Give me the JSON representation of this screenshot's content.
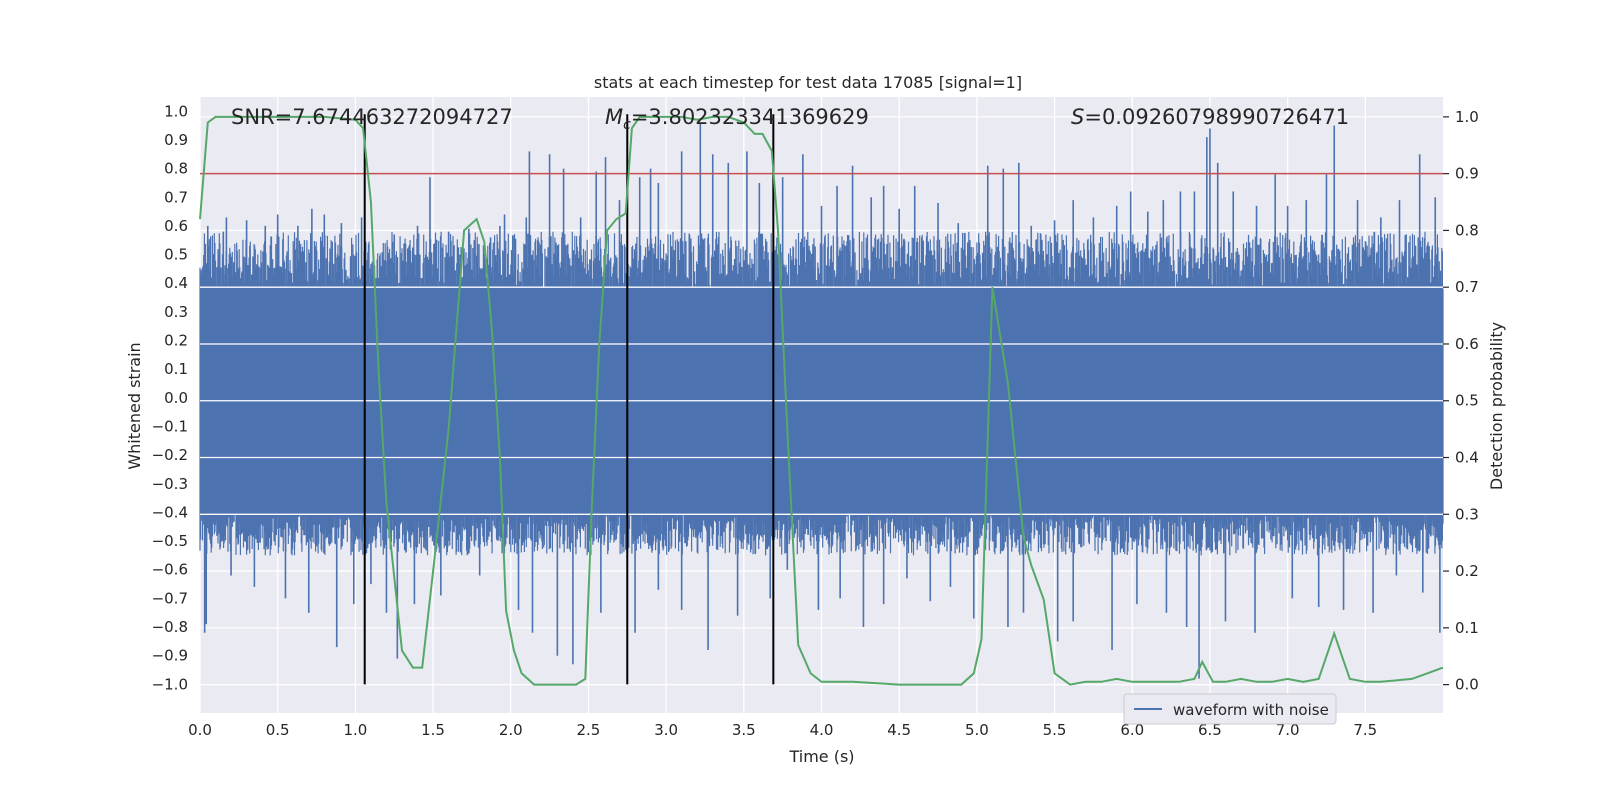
{
  "chart_data": {
    "type": "line",
    "title": "stats at each timestep for test data 17085 [signal=1]",
    "xlabel": "Time (s)",
    "ylabel": "Whitened strain",
    "y2label": "Detection probability",
    "xlim": [
      0,
      8
    ],
    "ylim": [
      -1.1,
      1.05
    ],
    "y2lim": [
      -0.05,
      1.035
    ],
    "x_ticks": [
      "0.0",
      "0.5",
      "1.0",
      "1.5",
      "2.0",
      "2.5",
      "3.0",
      "3.5",
      "4.0",
      "4.5",
      "5.0",
      "5.5",
      "6.0",
      "6.5",
      "7.0",
      "7.5"
    ],
    "y_ticks": [
      "1.0",
      "0.9",
      "0.8",
      "0.7",
      "0.6",
      "0.5",
      "0.4",
      "0.3",
      "0.2",
      "0.1",
      "0.0",
      "-0.1",
      "-0.2",
      "-0.3",
      "-0.4",
      "-0.5",
      "-0.6",
      "-0.7",
      "-0.8",
      "-0.9",
      "-1.0"
    ],
    "y2_ticks": [
      "1.0",
      "0.9",
      "0.8",
      "0.7",
      "0.6",
      "0.5",
      "0.4",
      "0.3",
      "0.2",
      "0.1",
      "0.0"
    ],
    "annotations": [
      {
        "kind": "plain",
        "text": "SNR=7.674463272094727"
      },
      {
        "kind": "mc",
        "prefix": "M",
        "sub": "c",
        "text": "=3.802323341369629"
      },
      {
        "kind": "s",
        "prefix": "S",
        "text": "=0.09260798990726471"
      }
    ],
    "legend": {
      "label": "waveform with noise",
      "placement": "lower-right"
    },
    "threshold": {
      "axis": "right",
      "value": 0.9
    },
    "vlines": [
      1.06,
      2.75,
      3.69
    ],
    "waveform": {
      "name": "waveform with noise",
      "color": "#4c72b0",
      "band": [
        -0.4,
        0.38
      ],
      "positive_spikes": [
        {
          "x": 0.05,
          "y": 0.6
        },
        {
          "x": 0.15,
          "y": 0.58
        },
        {
          "x": 0.17,
          "y": 0.63
        },
        {
          "x": 0.3,
          "y": 0.62
        },
        {
          "x": 0.42,
          "y": 0.6
        },
        {
          "x": 0.5,
          "y": 0.64
        },
        {
          "x": 0.63,
          "y": 0.6
        },
        {
          "x": 0.72,
          "y": 0.66
        },
        {
          "x": 0.8,
          "y": 0.64
        },
        {
          "x": 0.91,
          "y": 0.61
        },
        {
          "x": 1.04,
          "y": 0.63
        },
        {
          "x": 1.25,
          "y": 0.57
        },
        {
          "x": 1.4,
          "y": 0.6
        },
        {
          "x": 1.48,
          "y": 0.77
        },
        {
          "x": 1.6,
          "y": 0.58
        },
        {
          "x": 1.73,
          "y": 0.59
        },
        {
          "x": 1.87,
          "y": 0.56
        },
        {
          "x": 1.93,
          "y": 0.6
        },
        {
          "x": 1.96,
          "y": 0.64
        },
        {
          "x": 2.1,
          "y": 0.63
        },
        {
          "x": 2.12,
          "y": 0.86
        },
        {
          "x": 2.25,
          "y": 0.85
        },
        {
          "x": 2.34,
          "y": 0.8
        },
        {
          "x": 2.45,
          "y": 0.63
        },
        {
          "x": 2.55,
          "y": 0.79
        },
        {
          "x": 2.61,
          "y": 0.84
        },
        {
          "x": 2.7,
          "y": 0.69
        },
        {
          "x": 2.83,
          "y": 0.77
        },
        {
          "x": 2.9,
          "y": 0.8
        },
        {
          "x": 2.95,
          "y": 0.75
        },
        {
          "x": 3.1,
          "y": 0.86
        },
        {
          "x": 3.22,
          "y": 0.96
        },
        {
          "x": 3.3,
          "y": 0.85
        },
        {
          "x": 3.4,
          "y": 0.82
        },
        {
          "x": 3.52,
          "y": 0.86
        },
        {
          "x": 3.6,
          "y": 0.75
        },
        {
          "x": 3.75,
          "y": 0.77
        },
        {
          "x": 3.88,
          "y": 0.85
        },
        {
          "x": 4.0,
          "y": 0.67
        },
        {
          "x": 4.1,
          "y": 0.74
        },
        {
          "x": 4.2,
          "y": 0.81
        },
        {
          "x": 4.32,
          "y": 0.7
        },
        {
          "x": 4.4,
          "y": 0.74
        },
        {
          "x": 4.5,
          "y": 0.66
        },
        {
          "x": 4.6,
          "y": 0.74
        },
        {
          "x": 4.75,
          "y": 0.68
        },
        {
          "x": 4.88,
          "y": 0.61
        },
        {
          "x": 5.07,
          "y": 0.81
        },
        {
          "x": 5.17,
          "y": 0.8
        },
        {
          "x": 5.27,
          "y": 0.82
        },
        {
          "x": 5.35,
          "y": 0.6
        },
        {
          "x": 5.5,
          "y": 0.62
        },
        {
          "x": 5.62,
          "y": 0.69
        },
        {
          "x": 5.75,
          "y": 0.63
        },
        {
          "x": 5.9,
          "y": 0.67
        },
        {
          "x": 5.99,
          "y": 0.72
        },
        {
          "x": 6.1,
          "y": 0.65
        },
        {
          "x": 6.2,
          "y": 0.69
        },
        {
          "x": 6.31,
          "y": 0.72
        },
        {
          "x": 6.4,
          "y": 0.72
        },
        {
          "x": 6.48,
          "y": 0.91
        },
        {
          "x": 6.5,
          "y": 0.94
        },
        {
          "x": 6.55,
          "y": 0.82
        },
        {
          "x": 6.65,
          "y": 0.72
        },
        {
          "x": 6.8,
          "y": 0.67
        },
        {
          "x": 6.92,
          "y": 0.78
        },
        {
          "x": 7.0,
          "y": 0.67
        },
        {
          "x": 7.12,
          "y": 0.69
        },
        {
          "x": 7.25,
          "y": 0.78
        },
        {
          "x": 7.3,
          "y": 0.95
        },
        {
          "x": 7.45,
          "y": 0.69
        },
        {
          "x": 7.6,
          "y": 0.63
        },
        {
          "x": 7.72,
          "y": 0.69
        },
        {
          "x": 7.85,
          "y": 0.85
        },
        {
          "x": 7.95,
          "y": 0.7
        }
      ],
      "negative_spikes": [
        {
          "x": 0.03,
          "y": -0.82
        },
        {
          "x": 0.04,
          "y": -0.79
        },
        {
          "x": 0.2,
          "y": -0.62
        },
        {
          "x": 0.35,
          "y": -0.66
        },
        {
          "x": 0.55,
          "y": -0.7
        },
        {
          "x": 0.7,
          "y": -0.75
        },
        {
          "x": 0.88,
          "y": -0.87
        },
        {
          "x": 0.99,
          "y": -0.72
        },
        {
          "x": 1.1,
          "y": -0.65
        },
        {
          "x": 1.2,
          "y": -0.75
        },
        {
          "x": 1.27,
          "y": -0.91
        },
        {
          "x": 1.38,
          "y": -0.72
        },
        {
          "x": 1.55,
          "y": -0.69
        },
        {
          "x": 1.8,
          "y": -0.62
        },
        {
          "x": 2.05,
          "y": -0.74
        },
        {
          "x": 2.14,
          "y": -0.82
        },
        {
          "x": 2.3,
          "y": -0.9
        },
        {
          "x": 2.4,
          "y": -0.93
        },
        {
          "x": 2.58,
          "y": -0.75
        },
        {
          "x": 2.8,
          "y": -0.82
        },
        {
          "x": 2.95,
          "y": -0.67
        },
        {
          "x": 3.1,
          "y": -0.74
        },
        {
          "x": 3.27,
          "y": -0.88
        },
        {
          "x": 3.46,
          "y": -0.76
        },
        {
          "x": 3.67,
          "y": -0.7
        },
        {
          "x": 3.78,
          "y": -0.6
        },
        {
          "x": 3.98,
          "y": -0.74
        },
        {
          "x": 4.12,
          "y": -0.7
        },
        {
          "x": 4.27,
          "y": -0.8
        },
        {
          "x": 4.4,
          "y": -0.72
        },
        {
          "x": 4.55,
          "y": -0.63
        },
        {
          "x": 4.7,
          "y": -0.71
        },
        {
          "x": 4.83,
          "y": -0.66
        },
        {
          "x": 4.98,
          "y": -0.77
        },
        {
          "x": 5.2,
          "y": -0.8
        },
        {
          "x": 5.3,
          "y": -0.75
        },
        {
          "x": 5.52,
          "y": -0.85
        },
        {
          "x": 5.62,
          "y": -0.78
        },
        {
          "x": 5.87,
          "y": -0.88
        },
        {
          "x": 6.03,
          "y": -0.72
        },
        {
          "x": 6.22,
          "y": -0.75
        },
        {
          "x": 6.35,
          "y": -0.8
        },
        {
          "x": 6.43,
          "y": -0.98
        },
        {
          "x": 6.6,
          "y": -0.78
        },
        {
          "x": 6.79,
          "y": -0.82
        },
        {
          "x": 7.03,
          "y": -0.7
        },
        {
          "x": 7.2,
          "y": -0.73
        },
        {
          "x": 7.36,
          "y": -0.74
        },
        {
          "x": 7.55,
          "y": -0.75
        },
        {
          "x": 7.7,
          "y": -0.62
        },
        {
          "x": 7.87,
          "y": -0.68
        },
        {
          "x": 7.98,
          "y": -0.82
        }
      ]
    },
    "probability_series": {
      "name": "detection probability",
      "color": "#55a868",
      "x": [
        0.0,
        0.05,
        0.1,
        0.2,
        0.3,
        0.5,
        0.8,
        1.0,
        1.05,
        1.1,
        1.15,
        1.2,
        1.3,
        1.37,
        1.43,
        1.5,
        1.6,
        1.7,
        1.78,
        1.83,
        1.88,
        1.93,
        1.97,
        2.02,
        2.07,
        2.15,
        2.22,
        2.28,
        2.35,
        2.42,
        2.48,
        2.52,
        2.57,
        2.62,
        2.68,
        2.74,
        2.78,
        2.83,
        2.9,
        3.0,
        3.1,
        3.2,
        3.3,
        3.4,
        3.5,
        3.57,
        3.62,
        3.68,
        3.72,
        3.78,
        3.85,
        3.93,
        4.0,
        4.2,
        4.5,
        4.9,
        4.98,
        5.03,
        5.1,
        5.2,
        5.3,
        5.35,
        5.43,
        5.5,
        5.6,
        5.7,
        5.8,
        5.9,
        6.0,
        6.1,
        6.2,
        6.3,
        6.4,
        6.45,
        6.52,
        6.6,
        6.7,
        6.8,
        6.9,
        7.0,
        7.1,
        7.2,
        7.3,
        7.4,
        7.5,
        7.6,
        7.8,
        7.9,
        8.0
      ],
      "y": [
        0.82,
        0.99,
        1.0,
        1.0,
        1.0,
        1.0,
        1.0,
        0.995,
        0.98,
        0.85,
        0.55,
        0.32,
        0.06,
        0.03,
        0.03,
        0.2,
        0.45,
        0.8,
        0.82,
        0.78,
        0.62,
        0.4,
        0.13,
        0.06,
        0.02,
        0.0,
        0.0,
        0.0,
        0.0,
        0.0,
        0.01,
        0.3,
        0.6,
        0.8,
        0.82,
        0.83,
        0.98,
        1.0,
        1.0,
        1.0,
        1.0,
        0.995,
        1.0,
        1.0,
        0.99,
        0.97,
        0.97,
        0.94,
        0.8,
        0.45,
        0.07,
        0.02,
        0.005,
        0.005,
        0.0,
        0.0,
        0.02,
        0.08,
        0.7,
        0.53,
        0.26,
        0.21,
        0.15,
        0.02,
        0.0,
        0.005,
        0.005,
        0.01,
        0.005,
        0.005,
        0.005,
        0.005,
        0.01,
        0.04,
        0.005,
        0.005,
        0.01,
        0.005,
        0.005,
        0.01,
        0.005,
        0.01,
        0.09,
        0.01,
        0.005,
        0.005,
        0.01,
        0.02,
        0.03
      ]
    }
  }
}
